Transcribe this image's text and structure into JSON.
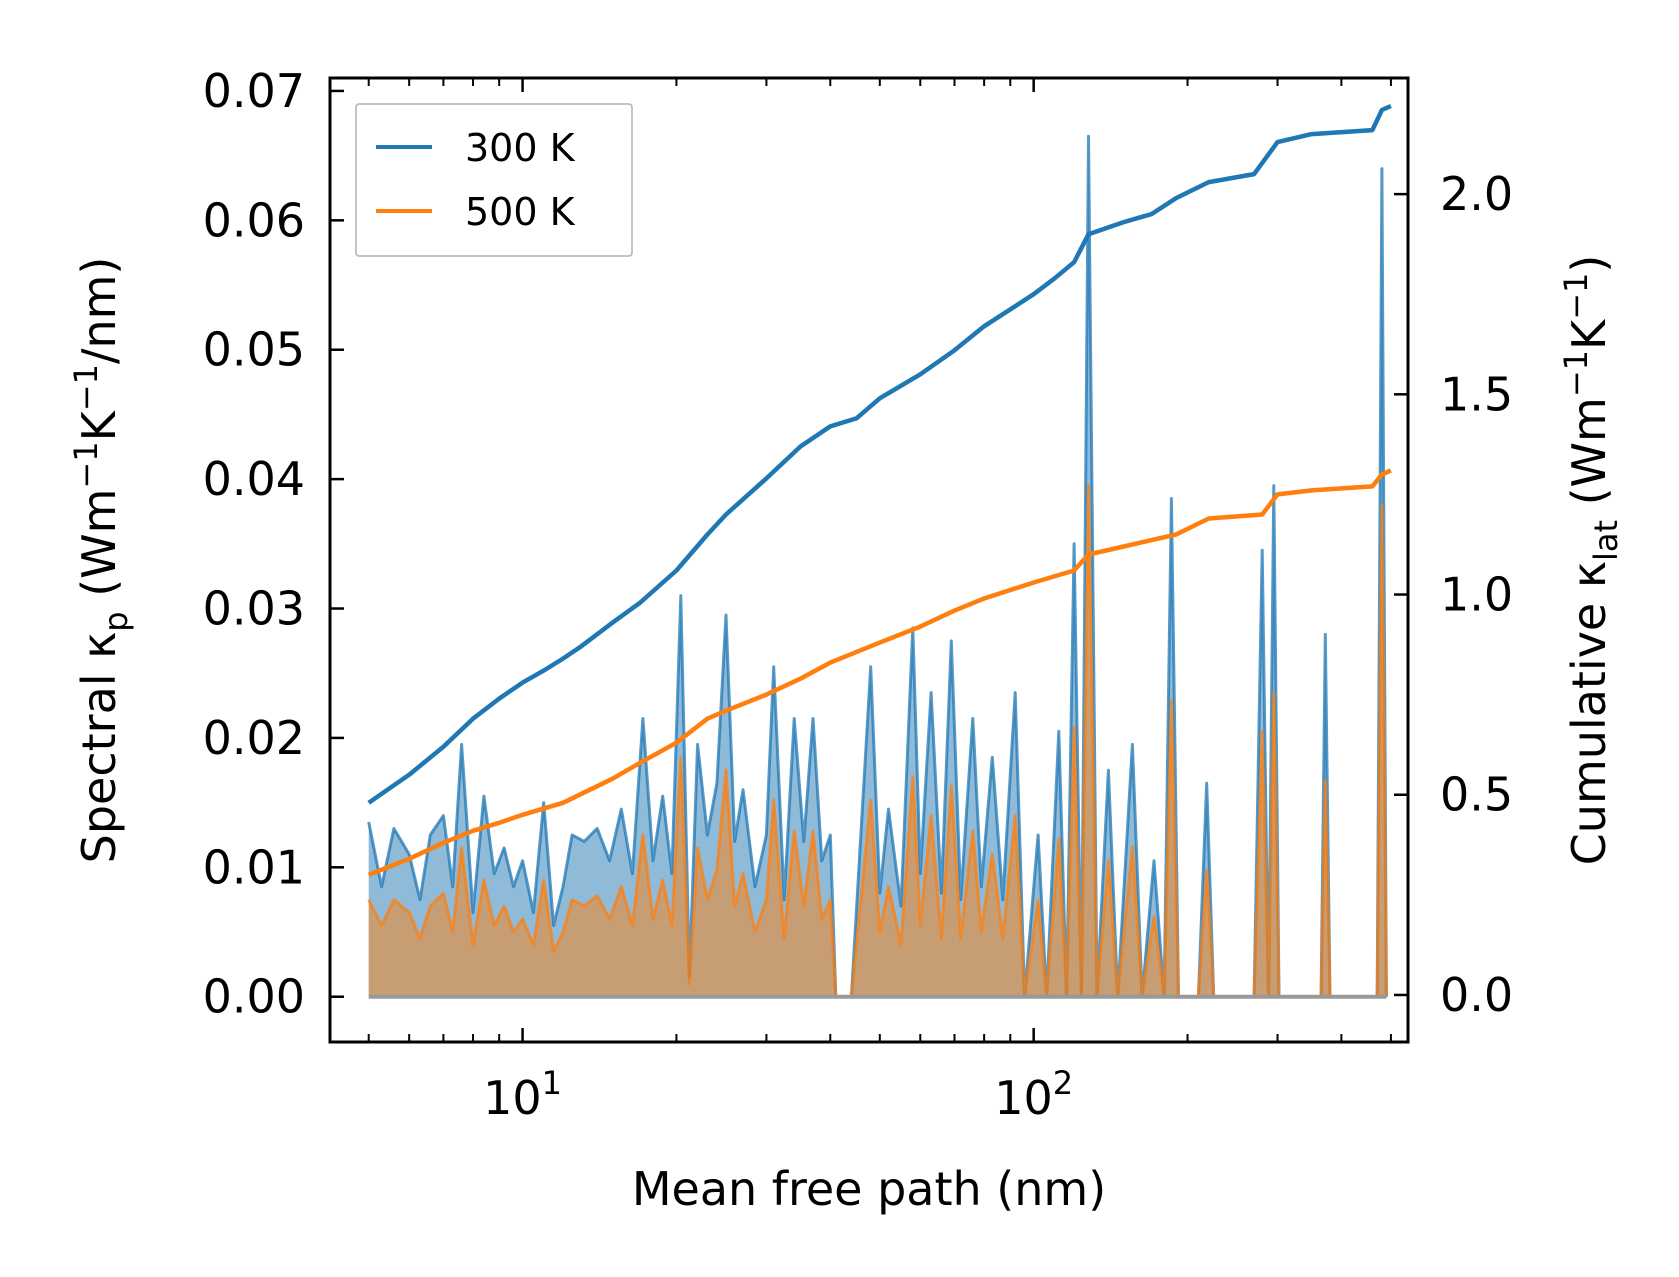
{
  "chart_data": {
    "type": "line+area",
    "title": "",
    "xlabel": "Mean free path (nm)",
    "ylabel_left": {
      "main": "Spectral κ",
      "sub": "p",
      "unit_open": " (Wm",
      "sup1": "−1",
      "k": "K",
      "sup2": "−1",
      "unit_close": "/nm)"
    },
    "ylabel_right": {
      "main": "Cumulative κ",
      "sub": "lat",
      "unit_open": " (Wm",
      "sup1": "−1",
      "k": "K",
      "sup2": "−1",
      "unit_close": ")"
    },
    "xscale": "log",
    "xlim": [
      4.2,
      540
    ],
    "ylim_left": [
      -0.0035,
      0.071
    ],
    "ylim_right": [
      -0.1175,
      2.29
    ],
    "x_major_ticks": [
      {
        "value": 10,
        "base": "10",
        "exp": "1"
      },
      {
        "value": 100,
        "base": "10",
        "exp": "2"
      }
    ],
    "y_left_ticks": [
      {
        "value": 0.0,
        "label": "0.00"
      },
      {
        "value": 0.01,
        "label": "0.01"
      },
      {
        "value": 0.02,
        "label": "0.02"
      },
      {
        "value": 0.03,
        "label": "0.03"
      },
      {
        "value": 0.04,
        "label": "0.04"
      },
      {
        "value": 0.05,
        "label": "0.05"
      },
      {
        "value": 0.06,
        "label": "0.06"
      },
      {
        "value": 0.07,
        "label": "0.07"
      }
    ],
    "y_right_ticks": [
      {
        "value": 0.0,
        "label": "0.0"
      },
      {
        "value": 0.5,
        "label": "0.5"
      },
      {
        "value": 1.0,
        "label": "1.0"
      },
      {
        "value": 1.5,
        "label": "1.5"
      },
      {
        "value": 2.0,
        "label": "2.0"
      }
    ],
    "legend": {
      "placement": "top-left",
      "entries": [
        {
          "label": "300 K",
          "color": "#1f77b4"
        },
        {
          "label": "500 K",
          "color": "#ff7f0e"
        }
      ]
    },
    "series": [
      {
        "name": "300 K",
        "color": "#1f77b4",
        "fill_color": "#1f77b4",
        "fill_alpha": 0.5,
        "spectral": [
          [
            5,
            0.0135
          ],
          [
            5.3,
            0.0085
          ],
          [
            5.6,
            0.013
          ],
          [
            6.0,
            0.011
          ],
          [
            6.3,
            0.0075
          ],
          [
            6.6,
            0.0125
          ],
          [
            7.0,
            0.014
          ],
          [
            7.3,
            0.0085
          ],
          [
            7.6,
            0.0195
          ],
          [
            8.0,
            0.0065
          ],
          [
            8.4,
            0.0155
          ],
          [
            8.8,
            0.0095
          ],
          [
            9.2,
            0.0115
          ],
          [
            9.6,
            0.0085
          ],
          [
            10.0,
            0.0105
          ],
          [
            10.5,
            0.0065
          ],
          [
            11.0,
            0.015
          ],
          [
            11.5,
            0.0055
          ],
          [
            12.0,
            0.0085
          ],
          [
            12.5,
            0.0125
          ],
          [
            13.2,
            0.012
          ],
          [
            14.0,
            0.013
          ],
          [
            14.8,
            0.0105
          ],
          [
            15.6,
            0.0145
          ],
          [
            16.4,
            0.0095
          ],
          [
            17.2,
            0.0215
          ],
          [
            18.0,
            0.0105
          ],
          [
            18.8,
            0.0155
          ],
          [
            19.6,
            0.0095
          ],
          [
            20.4,
            0.031
          ],
          [
            21.2,
            0.0015
          ],
          [
            22.0,
            0.0195
          ],
          [
            23.0,
            0.0125
          ],
          [
            24.0,
            0.0165
          ],
          [
            25.0,
            0.0295
          ],
          [
            26.0,
            0.012
          ],
          [
            27.0,
            0.016
          ],
          [
            28.5,
            0.0085
          ],
          [
            30.0,
            0.0125
          ],
          [
            31.0,
            0.0255
          ],
          [
            32.5,
            0.0075
          ],
          [
            34.0,
            0.0215
          ],
          [
            35.5,
            0.012
          ],
          [
            37.0,
            0.0215
          ],
          [
            38.5,
            0.0105
          ],
          [
            40.0,
            0.0125
          ],
          [
            41.0,
            0.0
          ],
          [
            44.0,
            0.0
          ],
          [
            48.0,
            0.0255
          ],
          [
            50.0,
            0.008
          ],
          [
            52.0,
            0.0145
          ],
          [
            55.0,
            0.007
          ],
          [
            58.0,
            0.0285
          ],
          [
            60.0,
            0.0095
          ],
          [
            63.0,
            0.0235
          ],
          [
            66.0,
            0.008
          ],
          [
            69.0,
            0.0275
          ],
          [
            72.0,
            0.0075
          ],
          [
            76.0,
            0.0215
          ],
          [
            79.0,
            0.0085
          ],
          [
            83.0,
            0.0185
          ],
          [
            87.0,
            0.0075
          ],
          [
            92.0,
            0.0235
          ],
          [
            96.0,
            0.0
          ],
          [
            102.0,
            0.0125
          ],
          [
            106.0,
            0.0
          ],
          [
            112.0,
            0.0205
          ],
          [
            116.0,
            0.0
          ],
          [
            120.0,
            0.035
          ],
          [
            124.0,
            0.0
          ],
          [
            128.0,
            0.0665
          ],
          [
            133.0,
            0.0
          ],
          [
            140.0,
            0.0175
          ],
          [
            146.0,
            0.0
          ],
          [
            156.0,
            0.0195
          ],
          [
            163.0,
            0.0
          ],
          [
            172.0,
            0.0105
          ],
          [
            180.0,
            0.0
          ],
          [
            186.0,
            0.0385
          ],
          [
            192.0,
            0.0
          ],
          [
            210.0,
            0.0
          ],
          [
            218.0,
            0.0165
          ],
          [
            225.0,
            0.0
          ],
          [
            270.0,
            0.0
          ],
          [
            280.0,
            0.0345
          ],
          [
            288.0,
            0.0
          ],
          [
            295.0,
            0.0395
          ],
          [
            302.0,
            0.0
          ],
          [
            315.0,
            0.0
          ],
          [
            365.0,
            0.0
          ],
          [
            372.0,
            0.028
          ],
          [
            380.0,
            0.0
          ],
          [
            470.0,
            0.0
          ],
          [
            480.0,
            0.064
          ],
          [
            490.0,
            0.0
          ]
        ],
        "cumulative": [
          [
            5,
            0.48
          ],
          [
            6,
            0.55
          ],
          [
            7,
            0.62
          ],
          [
            8,
            0.69
          ],
          [
            9,
            0.74
          ],
          [
            10,
            0.78
          ],
          [
            11,
            0.81
          ],
          [
            12,
            0.84
          ],
          [
            13,
            0.87
          ],
          [
            15,
            0.93
          ],
          [
            17,
            0.98
          ],
          [
            20,
            1.06
          ],
          [
            23,
            1.15
          ],
          [
            25,
            1.2
          ],
          [
            30,
            1.29
          ],
          [
            35,
            1.37
          ],
          [
            40,
            1.42
          ],
          [
            45,
            1.44
          ],
          [
            50,
            1.49
          ],
          [
            60,
            1.55
          ],
          [
            70,
            1.61
          ],
          [
            80,
            1.67
          ],
          [
            100,
            1.75
          ],
          [
            110,
            1.79
          ],
          [
            120,
            1.83
          ],
          [
            128,
            1.9
          ],
          [
            150,
            1.93
          ],
          [
            170,
            1.95
          ],
          [
            190,
            1.99
          ],
          [
            220,
            2.03
          ],
          [
            270,
            2.05
          ],
          [
            300,
            2.13
          ],
          [
            350,
            2.15
          ],
          [
            460,
            2.16
          ],
          [
            480,
            2.21
          ],
          [
            500,
            2.22
          ]
        ]
      },
      {
        "name": "500 K",
        "color": "#ff7f0e",
        "fill_color": "#ff7f0e",
        "fill_alpha": 0.5,
        "spectral": [
          [
            5,
            0.0075
          ],
          [
            5.3,
            0.0055
          ],
          [
            5.6,
            0.0075
          ],
          [
            6.0,
            0.0065
          ],
          [
            6.3,
            0.0045
          ],
          [
            6.6,
            0.007
          ],
          [
            7.0,
            0.008
          ],
          [
            7.3,
            0.005
          ],
          [
            7.6,
            0.0115
          ],
          [
            8.0,
            0.004
          ],
          [
            8.4,
            0.009
          ],
          [
            8.8,
            0.0055
          ],
          [
            9.2,
            0.007
          ],
          [
            9.6,
            0.005
          ],
          [
            10.0,
            0.006
          ],
          [
            10.5,
            0.004
          ],
          [
            11.0,
            0.009
          ],
          [
            11.5,
            0.0035
          ],
          [
            12.0,
            0.005
          ],
          [
            12.5,
            0.0075
          ],
          [
            13.2,
            0.007
          ],
          [
            14.0,
            0.0078
          ],
          [
            14.8,
            0.006
          ],
          [
            15.6,
            0.0085
          ],
          [
            16.4,
            0.0055
          ],
          [
            17.2,
            0.0125
          ],
          [
            18.0,
            0.006
          ],
          [
            18.8,
            0.009
          ],
          [
            19.6,
            0.0055
          ],
          [
            20.4,
            0.0185
          ],
          [
            21.2,
            0.001
          ],
          [
            22.0,
            0.0115
          ],
          [
            23.0,
            0.0075
          ],
          [
            24.0,
            0.0098
          ],
          [
            25.0,
            0.0175
          ],
          [
            26.0,
            0.007
          ],
          [
            27.0,
            0.0095
          ],
          [
            28.5,
            0.005
          ],
          [
            30.0,
            0.0075
          ],
          [
            31.0,
            0.0152
          ],
          [
            32.5,
            0.0045
          ],
          [
            34.0,
            0.0128
          ],
          [
            35.5,
            0.007
          ],
          [
            37.0,
            0.0128
          ],
          [
            38.5,
            0.006
          ],
          [
            40.0,
            0.0075
          ],
          [
            41.0,
            0.0
          ],
          [
            44.0,
            0.0
          ],
          [
            48.0,
            0.0152
          ],
          [
            50.0,
            0.005
          ],
          [
            52.0,
            0.0085
          ],
          [
            55.0,
            0.004
          ],
          [
            58.0,
            0.017
          ],
          [
            60.0,
            0.0055
          ],
          [
            63.0,
            0.014
          ],
          [
            66.0,
            0.0045
          ],
          [
            69.0,
            0.0163
          ],
          [
            72.0,
            0.0045
          ],
          [
            76.0,
            0.0128
          ],
          [
            79.0,
            0.005
          ],
          [
            83.0,
            0.011
          ],
          [
            87.0,
            0.0045
          ],
          [
            92.0,
            0.014
          ],
          [
            96.0,
            0.0
          ],
          [
            102.0,
            0.0075
          ],
          [
            106.0,
            0.0
          ],
          [
            112.0,
            0.0122
          ],
          [
            116.0,
            0.0
          ],
          [
            120.0,
            0.0208
          ],
          [
            124.0,
            0.0
          ],
          [
            128.0,
            0.0395
          ],
          [
            133.0,
            0.0
          ],
          [
            140.0,
            0.0105
          ],
          [
            146.0,
            0.0
          ],
          [
            156.0,
            0.0116
          ],
          [
            163.0,
            0.0
          ],
          [
            172.0,
            0.0062
          ],
          [
            180.0,
            0.0
          ],
          [
            186.0,
            0.0229
          ],
          [
            192.0,
            0.0
          ],
          [
            210.0,
            0.0
          ],
          [
            218.0,
            0.0098
          ],
          [
            225.0,
            0.0
          ],
          [
            270.0,
            0.0
          ],
          [
            280.0,
            0.0205
          ],
          [
            288.0,
            0.0
          ],
          [
            295.0,
            0.0235
          ],
          [
            302.0,
            0.0
          ],
          [
            315.0,
            0.0
          ],
          [
            365.0,
            0.0
          ],
          [
            372.0,
            0.0167
          ],
          [
            380.0,
            0.0
          ],
          [
            470.0,
            0.0
          ],
          [
            480.0,
            0.038
          ],
          [
            490.0,
            0.0
          ]
        ],
        "cumulative": [
          [
            5,
            0.3
          ],
          [
            6,
            0.34
          ],
          [
            7,
            0.38
          ],
          [
            8,
            0.41
          ],
          [
            9,
            0.43
          ],
          [
            10,
            0.45
          ],
          [
            12,
            0.48
          ],
          [
            15,
            0.54
          ],
          [
            17,
            0.58
          ],
          [
            20,
            0.63
          ],
          [
            23,
            0.69
          ],
          [
            25,
            0.71
          ],
          [
            30,
            0.75
          ],
          [
            35,
            0.79
          ],
          [
            40,
            0.83
          ],
          [
            50,
            0.88
          ],
          [
            60,
            0.92
          ],
          [
            70,
            0.96
          ],
          [
            80,
            0.99
          ],
          [
            100,
            1.03
          ],
          [
            120,
            1.06
          ],
          [
            128,
            1.1
          ],
          [
            150,
            1.12
          ],
          [
            190,
            1.15
          ],
          [
            220,
            1.19
          ],
          [
            280,
            1.2
          ],
          [
            300,
            1.25
          ],
          [
            350,
            1.26
          ],
          [
            460,
            1.27
          ],
          [
            480,
            1.3
          ],
          [
            500,
            1.31
          ]
        ]
      }
    ]
  }
}
